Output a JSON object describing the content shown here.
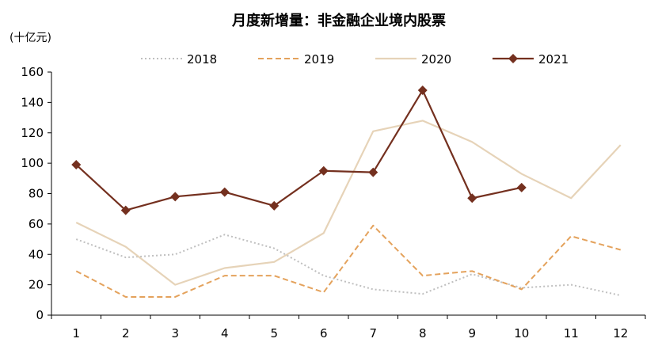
{
  "chart_data": {
    "type": "line",
    "title": "月度新增量：非金融企业境内股票",
    "unit_label": "(十亿元)",
    "xlabel": "",
    "ylabel": "(十亿元)",
    "categories": [
      "1",
      "2",
      "3",
      "4",
      "5",
      "6",
      "7",
      "8",
      "9",
      "10",
      "11",
      "12"
    ],
    "y_ticks": [
      0,
      20,
      40,
      60,
      80,
      100,
      120,
      140,
      160
    ],
    "ylim": [
      0,
      160
    ],
    "legend_position": "top",
    "series": [
      {
        "name": "2018",
        "style": "dotted",
        "color": "#bfbfbf",
        "values": [
          50,
          38,
          40,
          53,
          44,
          26,
          17,
          14,
          27,
          18,
          20,
          13
        ]
      },
      {
        "name": "2019",
        "style": "dashed",
        "color": "#e4a25c",
        "values": [
          29,
          12,
          12,
          26,
          26,
          15,
          59,
          26,
          29,
          17,
          52,
          43
        ]
      },
      {
        "name": "2020",
        "style": "solid",
        "color": "#e6d3b8",
        "values": [
          61,
          45,
          20,
          31,
          35,
          54,
          121,
          128,
          114,
          93,
          77,
          112
        ]
      },
      {
        "name": "2021",
        "style": "solid-marker",
        "color": "#74301f",
        "values": [
          99,
          69,
          78,
          81,
          72,
          95,
          94,
          148,
          77,
          84,
          null,
          null
        ]
      }
    ]
  }
}
